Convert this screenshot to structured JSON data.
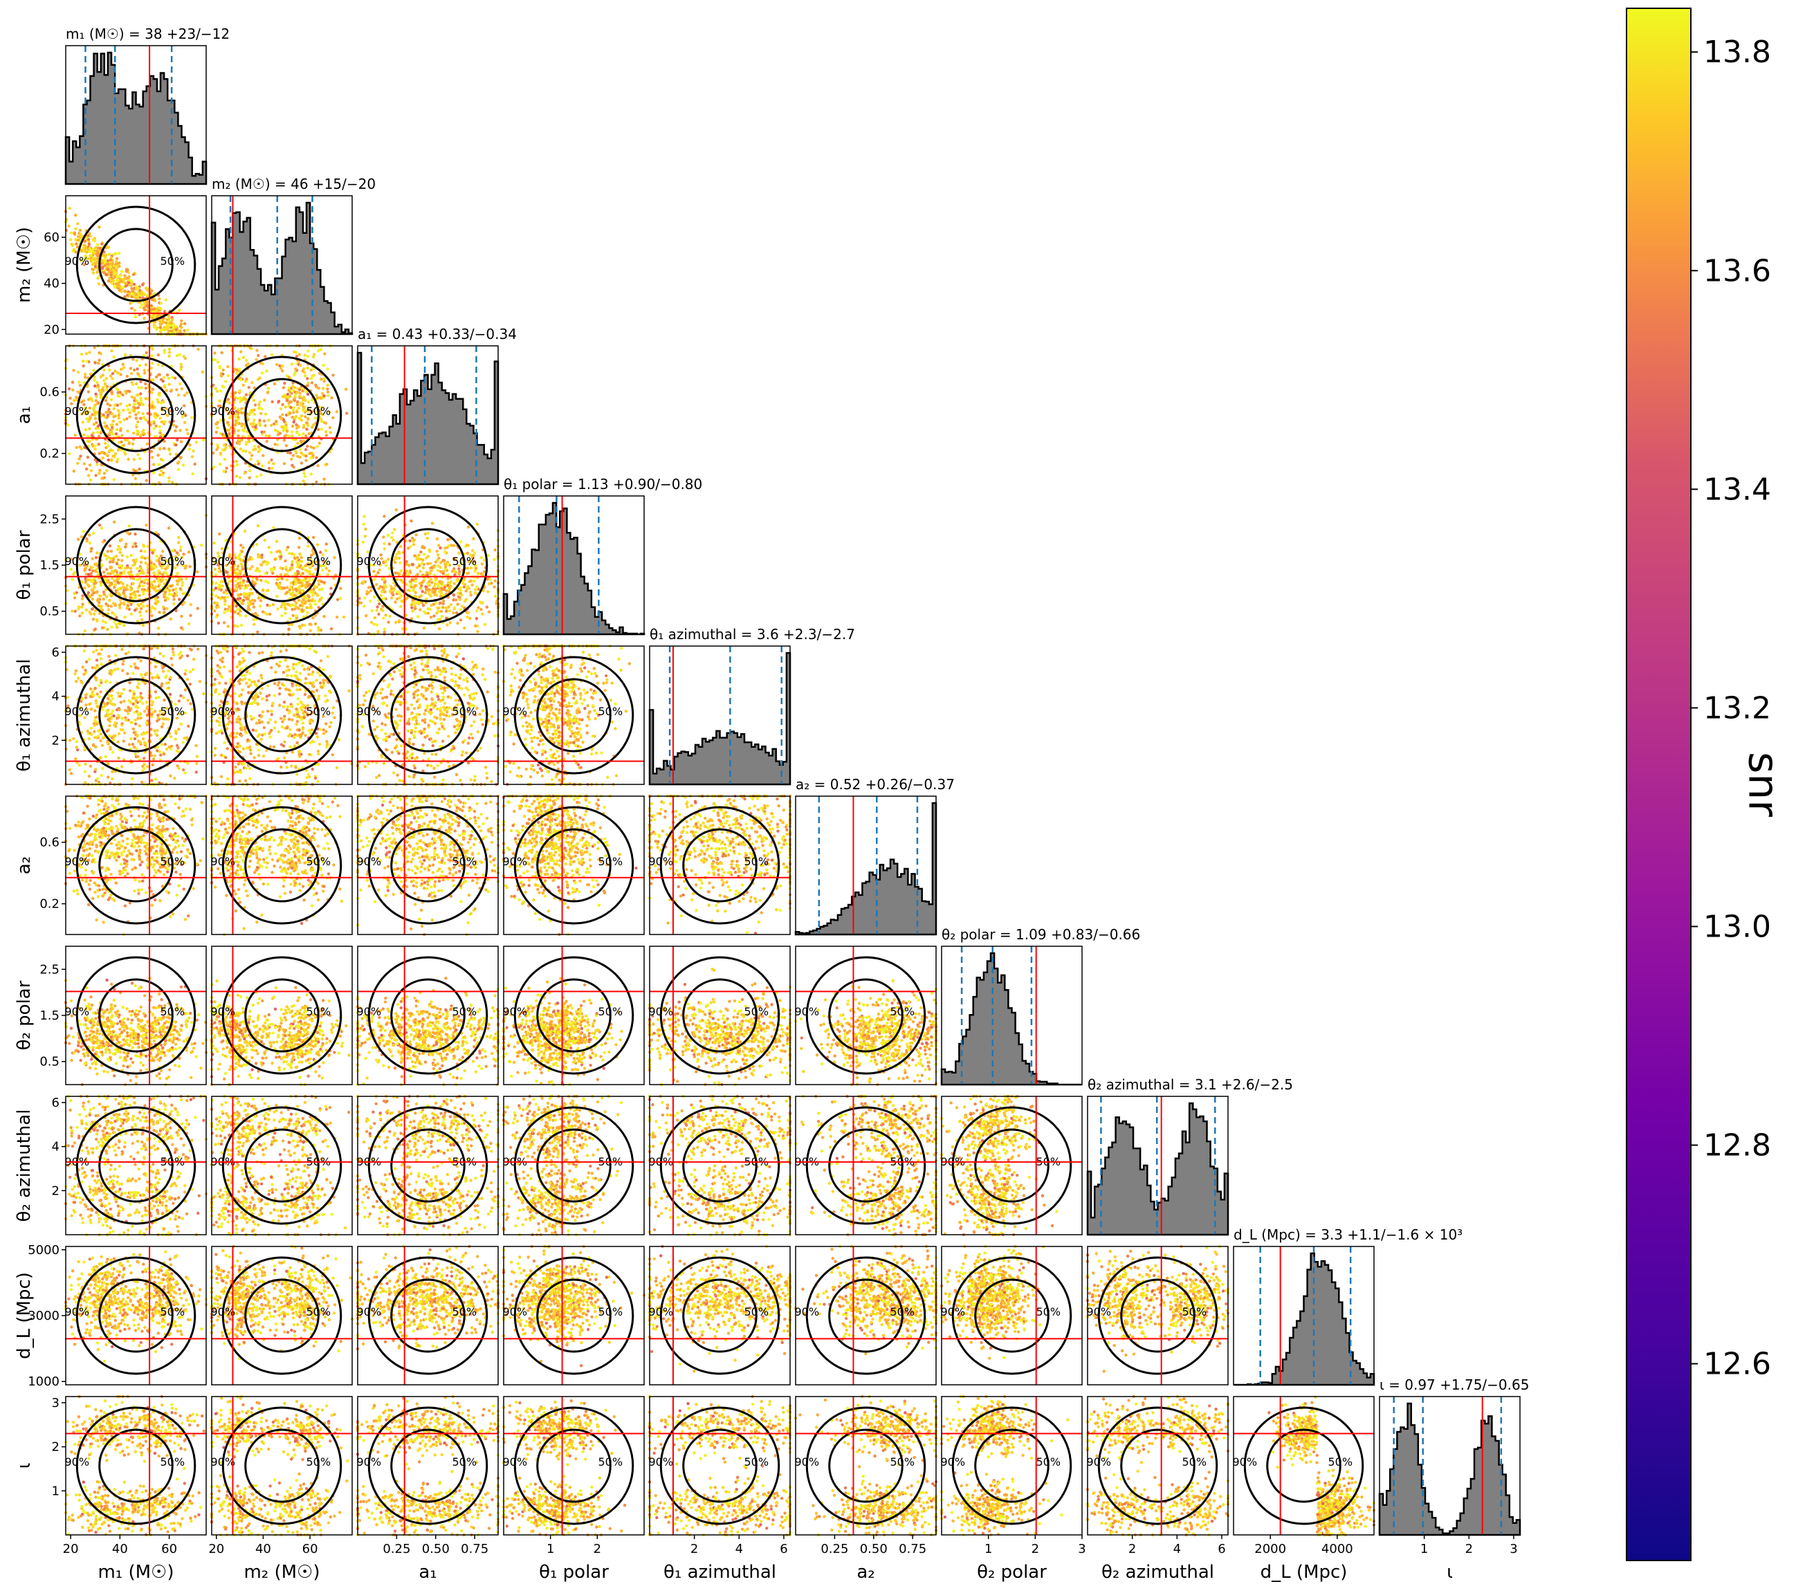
{
  "chart_data": {
    "type": "scatter",
    "subtype": "corner-plot",
    "colorbar": {
      "label": "snr",
      "ticks": [
        "12.6",
        "12.8",
        "13.0",
        "13.2",
        "13.4",
        "13.6",
        "13.8"
      ],
      "tick_values": [
        12.6,
        12.8,
        13.0,
        13.2,
        13.4,
        13.6,
        13.8
      ],
      "range": [
        12.42,
        13.84
      ],
      "colormap": "plasma"
    },
    "parameters": [
      {
        "key": "m1",
        "axis_label": "m₁ (M☉)",
        "title": "m₁ (M☉) = 38 +23/−12",
        "median": 38,
        "lower": 26,
        "upper": 61,
        "injected": 52,
        "range": [
          18,
          75
        ],
        "ticks": [
          "20",
          "40",
          "60"
        ],
        "tick_values": [
          20,
          40,
          60
        ],
        "modes": [
          [
            33,
            7
          ],
          [
            55,
            8
          ]
        ]
      },
      {
        "key": "m2",
        "axis_label": "m₂ (M☉)",
        "title": "m₂ (M☉) = 46 +15/−20",
        "median": 46,
        "lower": 26,
        "upper": 61,
        "injected": 27,
        "range": [
          18,
          78
        ],
        "ticks": [
          "20",
          "40",
          "60"
        ],
        "tick_values": [
          20,
          40,
          60
        ],
        "modes": [
          [
            30,
            7
          ],
          [
            56,
            7
          ]
        ]
      },
      {
        "key": "a1",
        "axis_label": "a₁",
        "title": "a₁ = 0.43 +0.33/−0.34",
        "median": 0.43,
        "lower": 0.09,
        "upper": 0.76,
        "injected": 0.3,
        "range": [
          0.0,
          0.9
        ],
        "ticks": [
          "0.25",
          "0.50",
          "0.75"
        ],
        "tick_values": [
          0.25,
          0.5,
          0.75
        ],
        "modes": [
          [
            0.45,
            0.25
          ]
        ]
      },
      {
        "key": "theta1p",
        "axis_label": "θ₁ polar",
        "title": "θ₁ polar = 1.13 +0.90/−0.80",
        "median": 1.13,
        "lower": 0.33,
        "upper": 2.03,
        "injected": 1.25,
        "range": [
          0.0,
          3.0
        ],
        "ticks": [
          "1",
          "2"
        ],
        "tick_values": [
          1,
          2
        ],
        "modes": [
          [
            1.1,
            0.5
          ]
        ]
      },
      {
        "key": "theta1a",
        "axis_label": "θ₁ azimuthal",
        "title": "θ₁ azimuthal = 3.6 +2.3/−2.7",
        "median": 3.6,
        "lower": 0.9,
        "upper": 5.9,
        "injected": 1.05,
        "range": [
          0.0,
          6.28
        ],
        "ticks": [
          "2",
          "4",
          "6"
        ],
        "tick_values": [
          2,
          4,
          6
        ],
        "modes": [
          [
            3.5,
            2.0
          ]
        ]
      },
      {
        "key": "a2",
        "axis_label": "a₂",
        "title": "a₂ = 0.52 +0.26/−0.37",
        "median": 0.52,
        "lower": 0.15,
        "upper": 0.78,
        "injected": 0.37,
        "range": [
          0.0,
          0.9
        ],
        "ticks": [
          "0.25",
          "0.50",
          "0.75"
        ],
        "tick_values": [
          0.25,
          0.5,
          0.75
        ],
        "modes": [
          [
            0.6,
            0.2
          ]
        ]
      },
      {
        "key": "theta2p",
        "axis_label": "θ₂ polar",
        "title": "θ₂ polar = 1.09 +0.83/−0.66",
        "median": 1.09,
        "lower": 0.43,
        "upper": 1.92,
        "injected": 2.02,
        "range": [
          0.0,
          3.0
        ],
        "ticks": [
          "1",
          "2",
          "3"
        ],
        "tick_values": [
          1,
          2,
          3
        ],
        "modes": [
          [
            1.05,
            0.4
          ]
        ]
      },
      {
        "key": "theta2a",
        "axis_label": "θ₂ azimuthal",
        "title": "θ₂ azimuthal = 3.1 +2.6/−2.5",
        "median": 3.1,
        "lower": 0.6,
        "upper": 5.7,
        "injected": 3.3,
        "range": [
          0.0,
          6.28
        ],
        "ticks": [
          "2",
          "4",
          "6"
        ],
        "tick_values": [
          2,
          4,
          6
        ],
        "modes": [
          [
            1.6,
            0.8
          ],
          [
            4.8,
            0.8
          ]
        ]
      },
      {
        "key": "dL",
        "axis_label": "d_L (Mpc)",
        "title": "d_L (Mpc) = 3.3 +1.1/−1.6 × 10³",
        "median": 3300,
        "lower": 1700,
        "upper": 4400,
        "injected": 2300,
        "range": [
          900,
          5100
        ],
        "ticks": [
          "2000",
          "4000"
        ],
        "tick_values": [
          2000,
          4000
        ],
        "y_ticks": [
          "1000",
          "3000",
          "5000"
        ],
        "y_tick_values": [
          1000,
          3000,
          5000
        ],
        "modes": [
          [
            3500,
            600
          ]
        ]
      },
      {
        "key": "iota",
        "axis_label": "ι",
        "title": "ι = 0.97 +1.75/−0.65",
        "median": 0.97,
        "lower": 0.32,
        "upper": 2.72,
        "injected": 2.3,
        "range": [
          0.0,
          3.14
        ],
        "ticks": [
          "1",
          "2",
          "3"
        ],
        "tick_values": [
          1,
          2,
          3
        ],
        "modes": [
          [
            0.6,
            0.3
          ],
          [
            2.4,
            0.3
          ]
        ]
      }
    ],
    "row_tick_overrides": {
      "m2": {
        "ticks": [
          "20",
          "40",
          "60"
        ],
        "tick_values": [
          20,
          40,
          60
        ]
      },
      "a1": {
        "ticks": [
          "0.2",
          "0.6"
        ],
        "tick_values": [
          0.2,
          0.6
        ]
      },
      "theta1p": {
        "ticks": [
          "0.5",
          "1.5",
          "2.5"
        ],
        "tick_values": [
          0.5,
          1.5,
          2.5
        ]
      },
      "theta1a": {
        "ticks": [
          "2",
          "4",
          "6"
        ],
        "tick_values": [
          2,
          4,
          6
        ]
      },
      "a2": {
        "ticks": [
          "0.2",
          "0.6"
        ],
        "tick_values": [
          0.2,
          0.6
        ]
      },
      "theta2p": {
        "ticks": [
          "0.5",
          "1.5",
          "2.5"
        ],
        "tick_values": [
          0.5,
          1.5,
          2.5
        ]
      },
      "theta2a": {
        "ticks": [
          "2",
          "4",
          "6"
        ],
        "tick_values": [
          2,
          4,
          6
        ]
      },
      "dL": {
        "ticks": [
          "1000",
          "3000",
          "5000"
        ],
        "tick_values": [
          1000,
          3000,
          5000
        ]
      },
      "iota": {
        "ticks": [
          "1",
          "2",
          "3"
        ],
        "tick_values": [
          1,
          2,
          3
        ]
      }
    },
    "contour_levels": [
      "50%",
      "90%"
    ],
    "median_line_color": "#1f77b4",
    "injection_line_color": "#ff0000",
    "histogram_fill": "#808080"
  }
}
